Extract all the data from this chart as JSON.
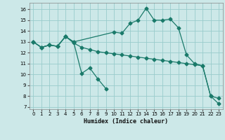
{
  "title": "",
  "xlabel": "Humidex (Indice chaleur)",
  "bg_color": "#cce8e8",
  "grid_color": "#99cccc",
  "line_color": "#1a7a6a",
  "xlim": [
    -0.5,
    23.5
  ],
  "ylim": [
    6.8,
    16.6
  ],
  "yticks": [
    7,
    8,
    9,
    10,
    11,
    12,
    13,
    14,
    15,
    16
  ],
  "xticks": [
    0,
    1,
    2,
    3,
    4,
    5,
    6,
    7,
    8,
    9,
    10,
    11,
    12,
    13,
    14,
    15,
    16,
    17,
    18,
    19,
    20,
    21,
    22,
    23
  ],
  "line1_x": [
    0,
    1,
    2,
    3,
    4,
    5,
    10,
    11,
    12,
    13,
    14,
    15,
    16,
    17,
    18,
    19,
    20,
    21,
    22,
    23
  ],
  "line1_y": [
    13.0,
    12.5,
    12.7,
    12.6,
    13.5,
    13.0,
    13.9,
    13.8,
    14.7,
    15.0,
    16.1,
    15.0,
    15.0,
    15.1,
    14.3,
    11.8,
    11.0,
    10.8,
    8.0,
    7.3
  ],
  "line2_x": [
    0,
    1,
    2,
    3,
    4,
    5,
    6,
    7,
    8,
    9,
    10,
    11,
    12,
    13,
    14,
    15,
    16,
    17,
    18,
    19,
    20,
    21,
    22,
    23
  ],
  "line2_y": [
    13.0,
    12.5,
    12.7,
    12.6,
    13.5,
    12.9,
    12.5,
    12.3,
    12.1,
    12.0,
    11.9,
    11.8,
    11.7,
    11.6,
    11.5,
    11.4,
    11.3,
    11.2,
    11.1,
    11.0,
    10.9,
    10.8,
    8.0,
    7.8
  ],
  "line3_x": [
    0,
    1,
    2,
    3,
    4,
    5,
    6,
    7,
    8,
    9
  ],
  "line3_y": [
    13.0,
    12.5,
    12.7,
    12.6,
    13.5,
    13.0,
    10.1,
    10.6,
    9.6,
    8.7
  ]
}
